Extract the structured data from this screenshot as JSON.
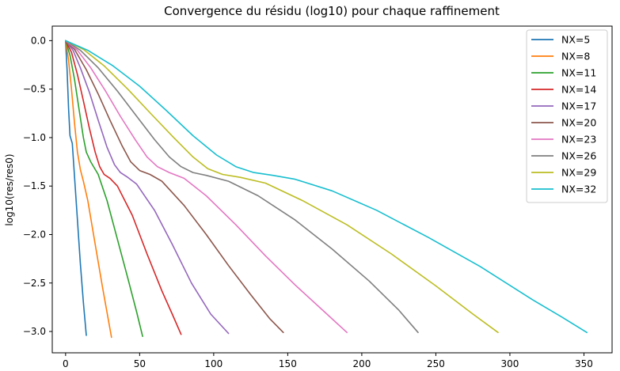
{
  "chart_data": {
    "type": "line",
    "title": "Convergence du résidu (log10) pour chaque raffinement",
    "xlabel": "",
    "ylabel": "log10(res/res0)",
    "xlim": [
      -9,
      369
    ],
    "ylim": [
      -3.22,
      0.15
    ],
    "x_ticks": [
      0,
      50,
      100,
      150,
      200,
      250,
      300,
      350
    ],
    "y_ticks": [
      0.0,
      -0.5,
      -1.0,
      -1.5,
      -2.0,
      -2.5,
      -3.0
    ],
    "x_tick_labels": [
      "0",
      "50",
      "100",
      "150",
      "200",
      "250",
      "300",
      "350"
    ],
    "y_tick_labels": [
      "0.0",
      "−0.5",
      "−1.0",
      "−1.5",
      "−2.0",
      "−2.5",
      "−3.0"
    ],
    "grid": false,
    "legend_position": "top-right",
    "series": [
      {
        "name": "NX=5",
        "color": "#1f77b4",
        "points": [
          [
            0,
            0
          ],
          [
            1,
            -0.3
          ],
          [
            2,
            -0.7
          ],
          [
            3,
            -0.98
          ],
          [
            4.5,
            -1.06
          ],
          [
            6,
            -1.4
          ],
          [
            8,
            -1.85
          ],
          [
            10,
            -2.3
          ],
          [
            12,
            -2.7
          ],
          [
            14,
            -3.04
          ]
        ]
      },
      {
        "name": "NX=8",
        "color": "#ff7f0e",
        "points": [
          [
            0,
            0
          ],
          [
            2,
            -0.2
          ],
          [
            4,
            -0.5
          ],
          [
            6,
            -0.85
          ],
          [
            8,
            -1.15
          ],
          [
            10,
            -1.33
          ],
          [
            12,
            -1.45
          ],
          [
            15,
            -1.65
          ],
          [
            20,
            -2.1
          ],
          [
            25,
            -2.55
          ],
          [
            31,
            -3.06
          ]
        ]
      },
      {
        "name": "NX=11",
        "color": "#2ca02c",
        "points": [
          [
            0,
            0
          ],
          [
            3,
            -0.15
          ],
          [
            6,
            -0.4
          ],
          [
            9,
            -0.7
          ],
          [
            12,
            -1.0
          ],
          [
            14,
            -1.15
          ],
          [
            17,
            -1.25
          ],
          [
            22,
            -1.38
          ],
          [
            28,
            -1.65
          ],
          [
            35,
            -2.05
          ],
          [
            42,
            -2.45
          ],
          [
            48,
            -2.8
          ],
          [
            52,
            -3.05
          ]
        ]
      },
      {
        "name": "NX=14",
        "color": "#d62728",
        "points": [
          [
            0,
            0
          ],
          [
            4,
            -0.12
          ],
          [
            8,
            -0.35
          ],
          [
            12,
            -0.62
          ],
          [
            16,
            -0.9
          ],
          [
            20,
            -1.15
          ],
          [
            23,
            -1.3
          ],
          [
            26,
            -1.38
          ],
          [
            30,
            -1.42
          ],
          [
            35,
            -1.5
          ],
          [
            45,
            -1.8
          ],
          [
            55,
            -2.2
          ],
          [
            65,
            -2.58
          ],
          [
            72,
            -2.82
          ],
          [
            78,
            -3.03
          ]
        ]
      },
      {
        "name": "NX=17",
        "color": "#9467bd",
        "points": [
          [
            0,
            0
          ],
          [
            5,
            -0.1
          ],
          [
            10,
            -0.28
          ],
          [
            16,
            -0.53
          ],
          [
            22,
            -0.82
          ],
          [
            28,
            -1.1
          ],
          [
            33,
            -1.28
          ],
          [
            37,
            -1.36
          ],
          [
            42,
            -1.41
          ],
          [
            48,
            -1.48
          ],
          [
            60,
            -1.75
          ],
          [
            72,
            -2.1
          ],
          [
            85,
            -2.5
          ],
          [
            98,
            -2.82
          ],
          [
            110,
            -3.02
          ]
        ]
      },
      {
        "name": "NX=20",
        "color": "#8c564b",
        "points": [
          [
            0,
            0
          ],
          [
            6,
            -0.09
          ],
          [
            14,
            -0.3
          ],
          [
            22,
            -0.55
          ],
          [
            30,
            -0.82
          ],
          [
            38,
            -1.08
          ],
          [
            44,
            -1.25
          ],
          [
            50,
            -1.34
          ],
          [
            57,
            -1.38
          ],
          [
            65,
            -1.45
          ],
          [
            80,
            -1.7
          ],
          [
            95,
            -2.0
          ],
          [
            110,
            -2.32
          ],
          [
            125,
            -2.62
          ],
          [
            138,
            -2.87
          ],
          [
            147,
            -3.01
          ]
        ]
      },
      {
        "name": "NX=23",
        "color": "#e377c2",
        "points": [
          [
            0,
            0
          ],
          [
            8,
            -0.1
          ],
          [
            17,
            -0.28
          ],
          [
            27,
            -0.52
          ],
          [
            37,
            -0.78
          ],
          [
            47,
            -1.02
          ],
          [
            55,
            -1.2
          ],
          [
            62,
            -1.3
          ],
          [
            70,
            -1.36
          ],
          [
            80,
            -1.42
          ],
          [
            95,
            -1.6
          ],
          [
            115,
            -1.9
          ],
          [
            135,
            -2.22
          ],
          [
            155,
            -2.52
          ],
          [
            175,
            -2.8
          ],
          [
            190,
            -3.01
          ]
        ]
      },
      {
        "name": "NX=26",
        "color": "#7f7f7f",
        "points": [
          [
            0,
            0
          ],
          [
            10,
            -0.1
          ],
          [
            22,
            -0.28
          ],
          [
            35,
            -0.52
          ],
          [
            48,
            -0.78
          ],
          [
            60,
            -1.02
          ],
          [
            70,
            -1.2
          ],
          [
            78,
            -1.3
          ],
          [
            86,
            -1.36
          ],
          [
            95,
            -1.39
          ],
          [
            110,
            -1.45
          ],
          [
            130,
            -1.6
          ],
          [
            155,
            -1.85
          ],
          [
            180,
            -2.15
          ],
          [
            205,
            -2.48
          ],
          [
            225,
            -2.78
          ],
          [
            238,
            -3.01
          ]
        ]
      },
      {
        "name": "NX=29",
        "color": "#bcbd22",
        "points": [
          [
            0,
            0
          ],
          [
            12,
            -0.09
          ],
          [
            26,
            -0.26
          ],
          [
            42,
            -0.5
          ],
          [
            58,
            -0.76
          ],
          [
            73,
            -1.0
          ],
          [
            86,
            -1.2
          ],
          [
            96,
            -1.32
          ],
          [
            106,
            -1.38
          ],
          [
            118,
            -1.41
          ],
          [
            135,
            -1.47
          ],
          [
            160,
            -1.65
          ],
          [
            190,
            -1.9
          ],
          [
            220,
            -2.2
          ],
          [
            250,
            -2.53
          ],
          [
            275,
            -2.82
          ],
          [
            292,
            -3.01
          ]
        ]
      },
      {
        "name": "NX=32",
        "color": "#17becf",
        "points": [
          [
            0,
            0
          ],
          [
            15,
            -0.1
          ],
          [
            32,
            -0.26
          ],
          [
            50,
            -0.47
          ],
          [
            68,
            -0.72
          ],
          [
            86,
            -0.98
          ],
          [
            102,
            -1.18
          ],
          [
            115,
            -1.3
          ],
          [
            127,
            -1.36
          ],
          [
            140,
            -1.39
          ],
          [
            155,
            -1.43
          ],
          [
            180,
            -1.55
          ],
          [
            210,
            -1.75
          ],
          [
            245,
            -2.03
          ],
          [
            280,
            -2.33
          ],
          [
            315,
            -2.67
          ],
          [
            335,
            -2.85
          ],
          [
            352,
            -3.01
          ]
        ]
      }
    ]
  }
}
